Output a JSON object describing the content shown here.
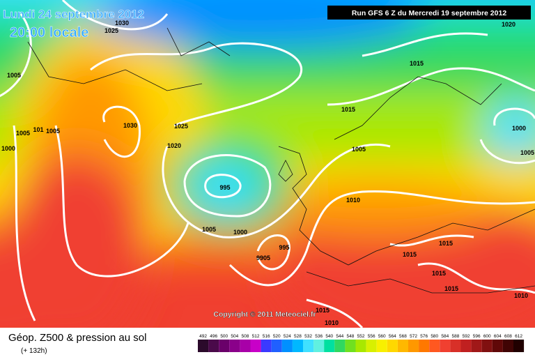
{
  "header": {
    "date": "Lundi 24 septembre 2012",
    "time": "20:00 locale",
    "run": "Run GFS 6 Z du Mercredi 19 septembre 2012"
  },
  "copyright": "Copyright © 2011 Meteociel.fr",
  "isobar_labels": [
    "1030",
    "1025",
    "1005",
    "1005",
    "101",
    "1005",
    "1000",
    "1030",
    "1025",
    "1020",
    "995",
    "1005",
    "1000",
    "995",
    "9905",
    "1015",
    "1020",
    "1015",
    "1000",
    "1005",
    "1005",
    "1010",
    "1015",
    "1015",
    "1015",
    "1015",
    "1010",
    "1015",
    "1010"
  ],
  "legend": {
    "title": "Géop. Z500 & pression au sol",
    "lead": "(+ 132h)",
    "labels": [
      492,
      496,
      500,
      504,
      508,
      512,
      516,
      520,
      524,
      528,
      532,
      536,
      540,
      544,
      548,
      552,
      556,
      560,
      564,
      568,
      572,
      576,
      580,
      584,
      588,
      592,
      596,
      600,
      604,
      608,
      612
    ],
    "colors": [
      "#2b0a2b",
      "#4a0a4a",
      "#6a006a",
      "#8a008a",
      "#a800a8",
      "#c800c8",
      "#3a3aff",
      "#2060ff",
      "#0090ff",
      "#00b8ff",
      "#40e0ff",
      "#60f0e0",
      "#00e0a0",
      "#30d860",
      "#70e020",
      "#a8e800",
      "#d8f000",
      "#f8f000",
      "#ffd800",
      "#ffb800",
      "#ff9800",
      "#ff7800",
      "#ff5820",
      "#f04030",
      "#d83028",
      "#c02020",
      "#a01818",
      "#801010",
      "#600808",
      "#400404",
      "#200000"
    ]
  }
}
